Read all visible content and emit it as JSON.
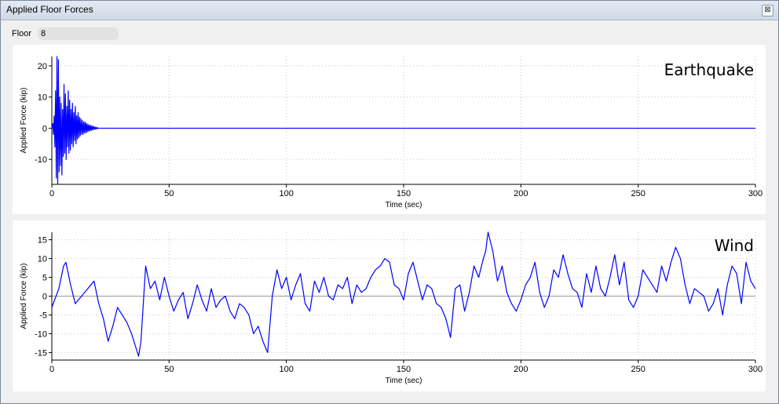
{
  "window": {
    "title": "Applied Floor Forces",
    "close_label": "⊠"
  },
  "floor": {
    "label": "Floor",
    "value": "8"
  },
  "chart_data": [
    {
      "type": "line",
      "title": "Earthquake",
      "xlabel": "Time (sec)",
      "ylabel": "Applied Force (kip)",
      "xlim": [
        0,
        300
      ],
      "ylim": [
        -18,
        23
      ],
      "xticks": [
        0,
        50,
        100,
        150,
        200,
        250,
        300
      ],
      "yticks": [
        -10,
        0,
        10,
        20
      ],
      "grid": true,
      "line_color": "#0000ff",
      "series": [
        {
          "x": [
            0.0,
            0.4,
            0.7,
            1.0,
            1.3,
            1.6,
            1.9,
            2.2,
            2.5,
            2.8,
            3.1,
            3.4,
            3.7,
            4.0,
            4.3,
            4.6,
            4.9,
            5.2,
            5.5,
            5.8,
            6.1,
            6.4,
            6.7,
            7.0,
            7.3,
            7.6,
            7.9,
            8.2,
            8.5,
            8.8,
            9.1,
            9.4,
            9.7,
            10.0,
            10.3,
            10.6,
            10.9,
            11.2,
            11.5,
            11.8,
            12.1,
            12.4,
            12.7,
            13.0,
            13.3,
            13.6,
            13.9,
            14.2,
            14.5,
            14.8,
            15.1,
            15.4,
            15.7,
            16.0,
            16.3,
            16.6,
            16.9,
            17.2,
            17.5,
            17.8,
            18.1,
            18.4,
            18.7,
            19.0,
            19.3,
            19.6,
            20.0,
            300.0
          ],
          "y": [
            0.0,
            1.5,
            -2.0,
            4.0,
            -6.0,
            12.0,
            -16.0,
            23.0,
            -18.0,
            22.0,
            -14.0,
            10.0,
            -12.0,
            8.0,
            -15.0,
            6.0,
            -9.0,
            14.0,
            -8.0,
            11.0,
            -10.0,
            7.0,
            -6.0,
            12.0,
            -8.0,
            9.0,
            -7.0,
            6.0,
            -5.0,
            8.0,
            -6.0,
            5.0,
            -4.0,
            7.0,
            -5.0,
            4.0,
            -3.5,
            5.0,
            -3.0,
            3.5,
            -2.5,
            3.0,
            -2.0,
            2.5,
            -2.0,
            2.0,
            -1.5,
            2.0,
            -1.5,
            1.5,
            -1.2,
            1.3,
            -1.0,
            1.0,
            -0.8,
            0.9,
            -0.7,
            0.7,
            -0.5,
            0.6,
            -0.4,
            0.4,
            -0.3,
            0.3,
            -0.2,
            0.1,
            0.0,
            0.0
          ]
        }
      ]
    },
    {
      "type": "line",
      "title": "Wind",
      "xlabel": "Time (sec)",
      "ylabel": "Applied Force (kip)",
      "xlim": [
        0,
        300
      ],
      "ylim": [
        -17,
        17
      ],
      "xticks": [
        0,
        50,
        100,
        150,
        200,
        250,
        300
      ],
      "yticks": [
        -15,
        -10,
        -5,
        0,
        5,
        10,
        15
      ],
      "grid": true,
      "line_color": "#0000ff",
      "series": [
        {
          "x": [
            0,
            3,
            5,
            6,
            8,
            10,
            14,
            18,
            20,
            22,
            24,
            26,
            28,
            30,
            32,
            34,
            36,
            37,
            38,
            40,
            42,
            44,
            46,
            48,
            50,
            52,
            54,
            56,
            58,
            60,
            62,
            64,
            66,
            68,
            70,
            72,
            74,
            76,
            78,
            80,
            82,
            84,
            86,
            88,
            90,
            92,
            94,
            96,
            98,
            100,
            102,
            104,
            106,
            108,
            110,
            112,
            114,
            116,
            118,
            120,
            122,
            124,
            126,
            128,
            130,
            132,
            134,
            136,
            138,
            140,
            142,
            144,
            146,
            148,
            150,
            152,
            154,
            156,
            158,
            160,
            162,
            164,
            166,
            168,
            170,
            172,
            174,
            176,
            178,
            180,
            182,
            184,
            185,
            186,
            188,
            190,
            192,
            194,
            196,
            198,
            200,
            202,
            204,
            206,
            208,
            210,
            212,
            214,
            216,
            218,
            220,
            222,
            224,
            226,
            228,
            230,
            232,
            234,
            236,
            238,
            240,
            242,
            244,
            246,
            248,
            250,
            252,
            254,
            256,
            258,
            260,
            262,
            264,
            266,
            268,
            270,
            272,
            274,
            276,
            278,
            280,
            282,
            284,
            286,
            288,
            290,
            292,
            294,
            296,
            298,
            300
          ],
          "y": [
            -3,
            2,
            8,
            9,
            3,
            -2,
            1,
            4,
            -2,
            -6,
            -12,
            -8,
            -3,
            -5,
            -7,
            -10,
            -14,
            -16,
            -12,
            8,
            2,
            4,
            -1,
            5,
            0,
            -4,
            -1,
            1,
            -6,
            -2,
            3,
            -1,
            -4,
            2,
            -3,
            -1,
            0,
            -4,
            -6,
            -2,
            -3,
            -5,
            -10,
            -8,
            -12,
            -15,
            0,
            7,
            2,
            5,
            -1,
            3,
            6,
            -2,
            -4,
            4,
            1,
            5,
            0,
            -1,
            3,
            2,
            5,
            -2,
            3,
            1,
            2,
            5,
            7,
            8,
            10,
            9,
            3,
            2,
            -1,
            6,
            9,
            4,
            -1,
            3,
            2,
            -2,
            -3,
            -6,
            -11,
            2,
            3,
            -4,
            1,
            8,
            5,
            10,
            12,
            17,
            12,
            4,
            8,
            1,
            -2,
            -4,
            -1,
            3,
            5,
            9,
            1,
            -3,
            0,
            7,
            5,
            11,
            6,
            2,
            1,
            -3,
            6,
            1,
            8,
            2,
            0,
            5,
            11,
            3,
            9,
            -1,
            -3,
            0,
            7,
            5,
            3,
            1,
            8,
            4,
            9,
            13,
            10,
            3,
            -2,
            2,
            1,
            0,
            -4,
            -2,
            2,
            -5,
            3,
            8,
            6,
            -2,
            9,
            4,
            2
          ]
        }
      ]
    }
  ]
}
